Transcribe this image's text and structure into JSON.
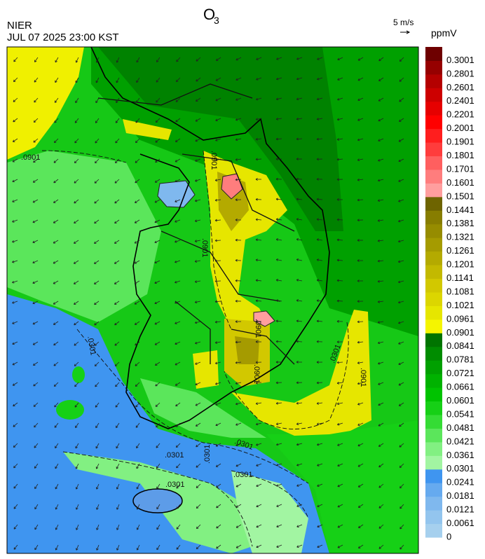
{
  "header": {
    "title": "O",
    "title_subscript": "3",
    "agency": "NIER",
    "datetime": "JUL 07 2025 23:00 KST",
    "wind_scale": "5 m/s",
    "unit": "ppmV"
  },
  "colorbar": {
    "labels": [
      "0",
      "0.0061",
      "0.0121",
      "0.0181",
      "0.0241",
      "0.0301",
      "0.0361",
      "0.0421",
      "0.0481",
      "0.0541",
      "0.0601",
      "0.0661",
      "0.0721",
      "0.0781",
      "0.0841",
      "0.0901",
      "0.0961",
      "0.1021",
      "0.1081",
      "0.1141",
      "0.1201",
      "0.1261",
      "0.1321",
      "0.1381",
      "0.1441",
      "0.1501",
      "0.1601",
      "0.1701",
      "0.1801",
      "0.1901",
      "0.2001",
      "0.2201",
      "0.2401",
      "0.2601",
      "0.2801",
      "0.3001"
    ],
    "colors": [
      "#a6d0ee",
      "#93c5ee",
      "#7fb8ee",
      "#66aaef",
      "#3f95f0",
      "#a2f5a2",
      "#82f082",
      "#5be65b",
      "#35dc35",
      "#16d016",
      "#00c300",
      "#00b200",
      "#00a000",
      "#008c00",
      "#007400",
      "#f5f500",
      "#e6e600",
      "#dcd600",
      "#d2c800",
      "#c3b900",
      "#b4aa00",
      "#a59b00",
      "#968c00",
      "#877d00",
      "#6e6400",
      "#ff9e9e",
      "#ff7d7d",
      "#ff5f5f",
      "#ff3c3c",
      "#ff1e1e",
      "#ff0000",
      "#e60000",
      "#cd0000",
      "#b40000",
      "#960000",
      "#6e0000"
    ]
  },
  "contour_labels": [
    ".0901",
    ".0901",
    ".0901",
    ".0301",
    ".0901",
    ".0901",
    ".0301",
    ".0901",
    ".0301",
    ".0301",
    ".0301",
    ".0301",
    ".0301"
  ]
}
